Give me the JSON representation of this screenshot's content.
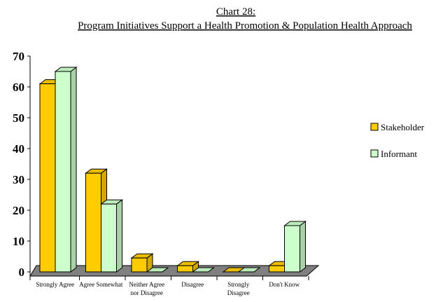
{
  "title_line1": "Chart 28:",
  "title_line2": "Program Initiatives Support a Health Promotion & Population Health Approach",
  "colors": {
    "stakeholder": "#FFCC00",
    "informant": "#CCFFCC",
    "floor": "#808080",
    "edge": "#000000"
  },
  "chart_data": {
    "type": "bar",
    "title": "Program Initiatives Support a Health Promotion & Population Health Approach",
    "xlabel": "",
    "ylabel": "",
    "ylim": [
      0,
      70
    ],
    "yticks": [
      0,
      10,
      20,
      30,
      40,
      50,
      60,
      70
    ],
    "categories": [
      [
        "Strongly Agree"
      ],
      [
        "Agree Somewhat"
      ],
      [
        "Neither Agree",
        "nor Disagree"
      ],
      [
        "Disagree"
      ],
      [
        "Strongly",
        "Disagree"
      ],
      [
        "Don't Know"
      ]
    ],
    "series": [
      {
        "name": "Stakeholder",
        "values": [
          61,
          32,
          4.5,
          2,
          0,
          2
        ]
      },
      {
        "name": "Informant",
        "values": [
          65,
          22,
          0,
          0,
          0,
          15
        ]
      }
    ],
    "legend_position": "right",
    "grid": false
  }
}
